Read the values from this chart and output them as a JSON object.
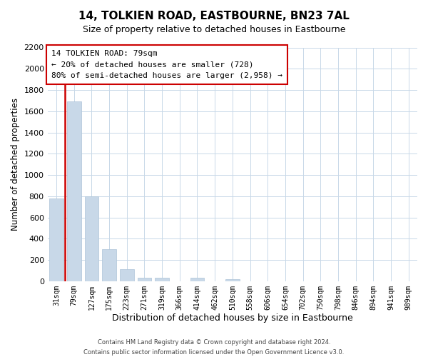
{
  "title": "14, TOLKIEN ROAD, EASTBOURNE, BN23 7AL",
  "subtitle": "Size of property relative to detached houses in Eastbourne",
  "xlabel": "Distribution of detached houses by size in Eastbourne",
  "ylabel": "Number of detached properties",
  "footer_line1": "Contains HM Land Registry data © Crown copyright and database right 2024.",
  "footer_line2": "Contains public sector information licensed under the Open Government Licence v3.0.",
  "bar_labels": [
    "31sqm",
    "79sqm",
    "127sqm",
    "175sqm",
    "223sqm",
    "271sqm",
    "319sqm",
    "366sqm",
    "414sqm",
    "462sqm",
    "510sqm",
    "558sqm",
    "606sqm",
    "654sqm",
    "702sqm",
    "750sqm",
    "798sqm",
    "846sqm",
    "894sqm",
    "941sqm",
    "989sqm"
  ],
  "bar_values": [
    780,
    1690,
    800,
    300,
    115,
    35,
    35,
    0,
    30,
    0,
    20,
    0,
    0,
    0,
    0,
    0,
    0,
    0,
    0,
    0,
    0
  ],
  "bar_color": "#c8d8e8",
  "property_bar_index": 1,
  "annotation_title": "14 TOLKIEN ROAD: 79sqm",
  "annotation_line1": "← 20% of detached houses are smaller (728)",
  "annotation_line2": "80% of semi-detached houses are larger (2,958) →",
  "annotation_box_facecolor": "#ffffff",
  "annotation_box_edgecolor": "#cc0000",
  "ylim": [
    0,
    2200
  ],
  "yticks": [
    0,
    200,
    400,
    600,
    800,
    1000,
    1200,
    1400,
    1600,
    1800,
    2000,
    2200
  ],
  "vertical_line_color": "#cc0000",
  "grid_color": "#c8d8e8",
  "title_fontsize": 11,
  "subtitle_fontsize": 9
}
